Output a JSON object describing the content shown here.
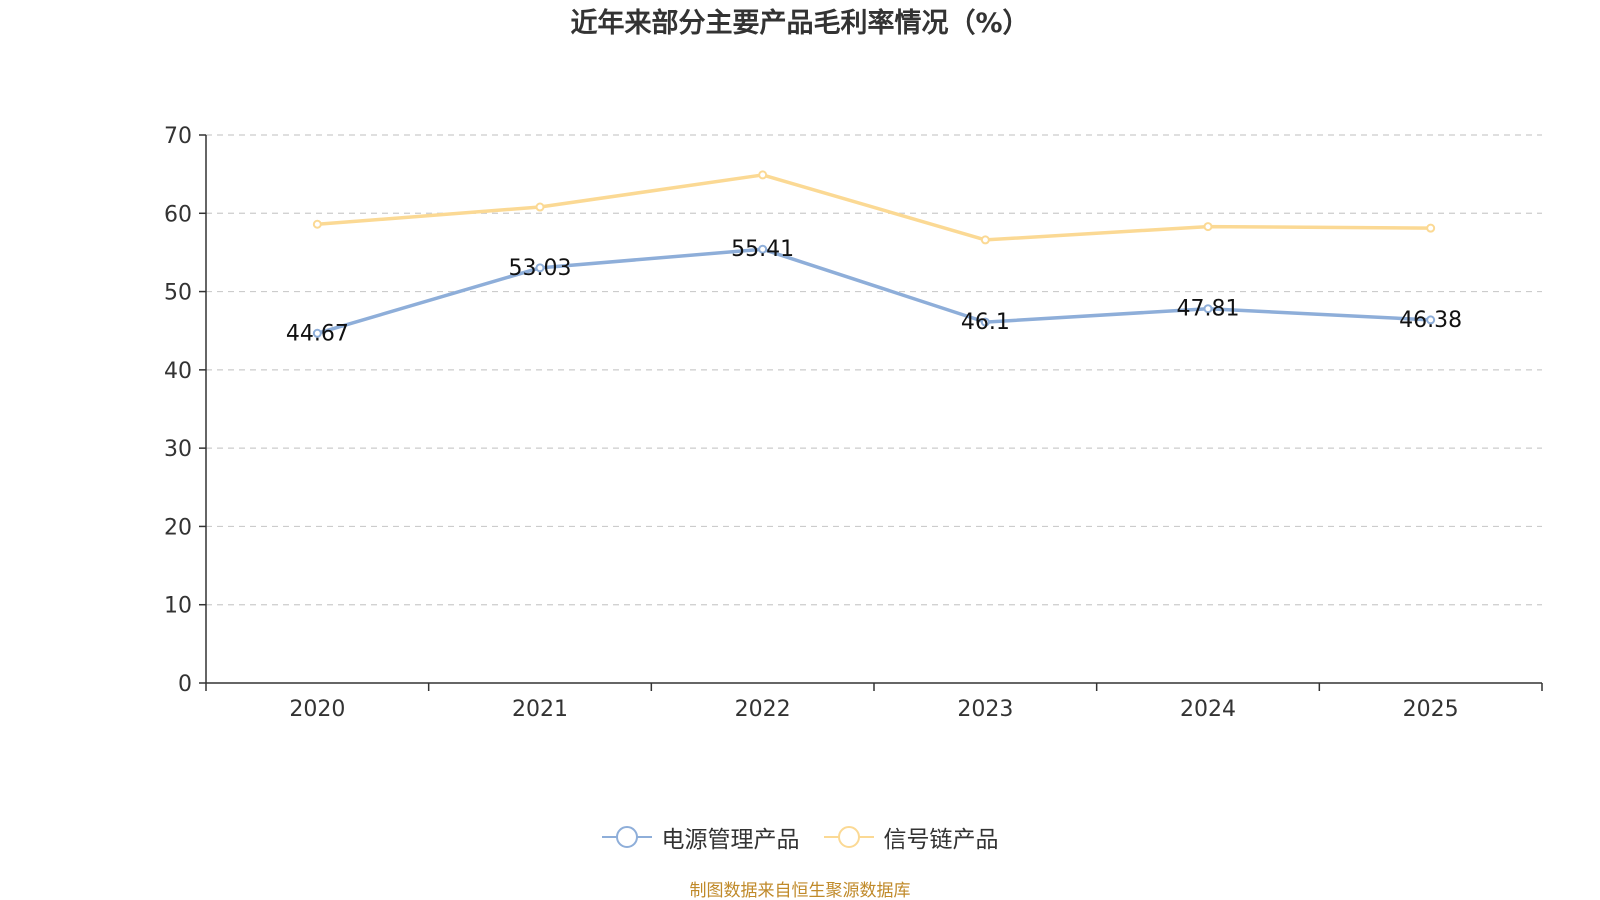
{
  "chart_data": {
    "type": "line",
    "title": "近年来部分主要产品毛利率情况（%）",
    "categories": [
      "2020",
      "2021",
      "2022",
      "2023",
      "2024",
      "2025"
    ],
    "y_ticks": [
      "0",
      "10",
      "20",
      "30",
      "40",
      "50",
      "60",
      "70"
    ],
    "ylim": [
      0,
      70
    ],
    "grid": true,
    "legend_position": "bottom-center",
    "series": [
      {
        "name": "电源管理产品",
        "color": "#8eaed9",
        "values": [
          44.67,
          53.03,
          55.41,
          46.1,
          47.81,
          46.38
        ],
        "labels": [
          "44.67",
          "53.03",
          "55.41",
          "46.1",
          "47.81",
          "46.38"
        ],
        "show_labels": true
      },
      {
        "name": "信号链产品",
        "color": "#fbd994",
        "values": [
          58.6,
          60.8,
          64.9,
          56.6,
          58.3,
          58.1
        ],
        "show_labels": false
      }
    ]
  },
  "source_note": "制图数据来自恒生聚源数据库"
}
